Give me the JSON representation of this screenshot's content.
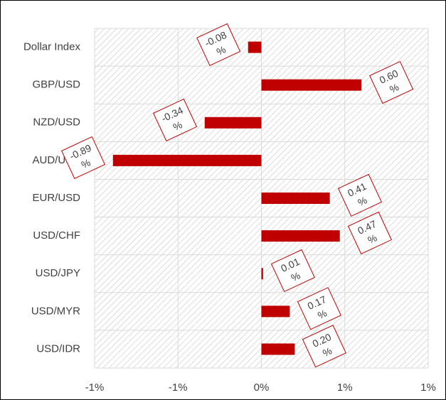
{
  "chart_data": {
    "type": "hbar",
    "categories": [
      "Dollar Index",
      "GBP/USD",
      "NZD/USD",
      "AUD/USD",
      "EUR/USD",
      "USD/CHF",
      "USD/JPY",
      "USD/MYR",
      "USD/IDR"
    ],
    "values": [
      -0.08,
      0.6,
      -0.34,
      -0.89,
      0.41,
      0.47,
      0.01,
      0.17,
      0.2
    ],
    "value_labels": [
      "-0.08%",
      "0.60%",
      "-0.34%",
      "-0.89%",
      "0.41%",
      "0.47%",
      "0.01%",
      "0.17%",
      "0.20%"
    ],
    "color": "#c00000",
    "xlim": [
      -1,
      1
    ],
    "xticks": [
      {
        "value": -1,
        "label": "-1%"
      },
      {
        "value": -0.5,
        "label": "-1%"
      },
      {
        "value": 0,
        "label": "0%"
      },
      {
        "value": 0.5,
        "label": "1%"
      },
      {
        "value": 1,
        "label": "1%"
      }
    ],
    "grid": true
  }
}
